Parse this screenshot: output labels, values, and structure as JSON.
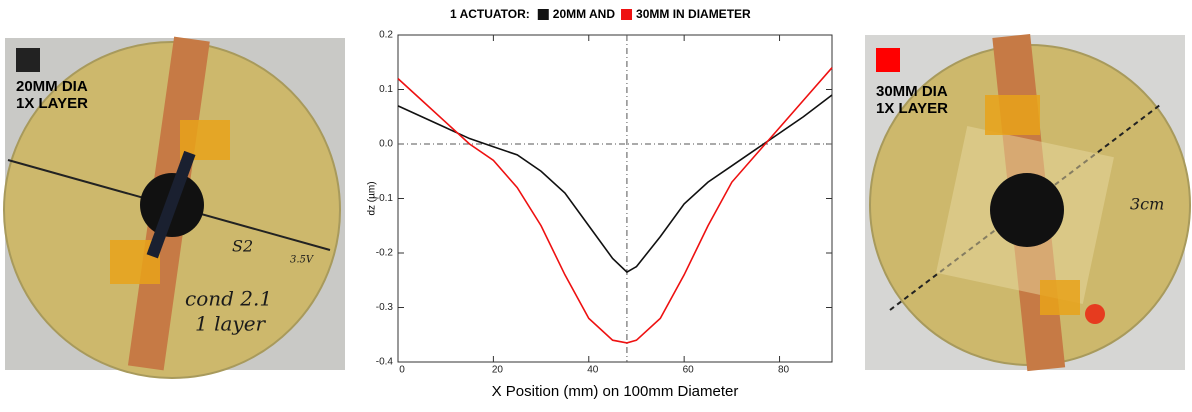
{
  "chart_data": {
    "type": "line",
    "title": "1 ACTUATOR:",
    "x_label": "X Position (mm) on 100mm Diameter",
    "y_label": "dz (µm)",
    "x": [
      0,
      5,
      10,
      15,
      20,
      25,
      30,
      35,
      40,
      45,
      48,
      50,
      55,
      60,
      65,
      70,
      75,
      80,
      85,
      91
    ],
    "series": [
      {
        "name": "20MM AND",
        "color": "#111111",
        "values": [
          0.07,
          0.05,
          0.03,
          0.01,
          -0.005,
          -0.02,
          -0.05,
          -0.09,
          -0.15,
          -0.21,
          -0.235,
          -0.225,
          -0.17,
          -0.11,
          -0.07,
          -0.04,
          -0.01,
          0.02,
          0.05,
          0.09
        ]
      },
      {
        "name": "30MM IN DIAMETER",
        "color": "#ee1111",
        "values": [
          0.12,
          0.08,
          0.04,
          0.0,
          -0.03,
          -0.08,
          -0.15,
          -0.24,
          -0.32,
          -0.36,
          -0.365,
          -0.36,
          -0.32,
          -0.24,
          -0.15,
          -0.07,
          -0.02,
          0.03,
          0.08,
          0.14
        ]
      }
    ],
    "xlim": [
      0,
      91
    ],
    "ylim": [
      -0.4,
      0.2
    ],
    "xticks": [
      0,
      20,
      40,
      60,
      80
    ],
    "yticks": [
      0.2,
      0.1,
      {
        "value": 0,
        "label": "0.0"
      },
      -0.1,
      -0.2,
      -0.3,
      -0.4
    ],
    "ref_x": 48,
    "ref_y": 0
  },
  "photos": [
    {
      "lines": [
        "20MM DIA",
        "1X LAYER"
      ],
      "color": "#222222",
      "notes": [
        "S2",
        "3.5V",
        "cond 2.1",
        "1 layer"
      ]
    },
    {
      "lines": [
        "30MM DIA",
        "1X LAYER"
      ],
      "color": "#ff0000",
      "notes": [
        "3cm"
      ]
    }
  ]
}
